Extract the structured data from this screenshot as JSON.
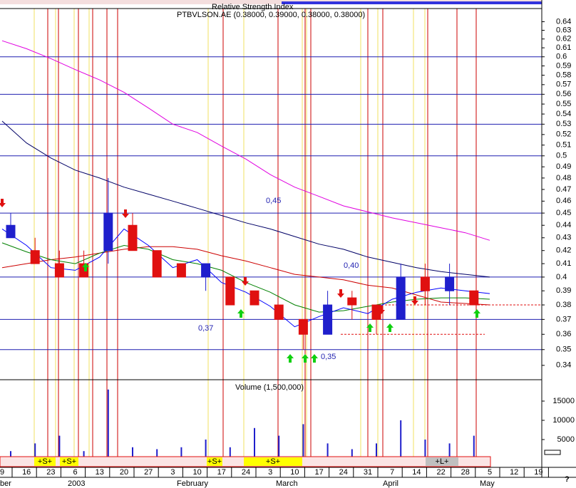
{
  "chart_data": {
    "type": "candlestick",
    "title": "PTBVLSON.AE (0.38000, 0.39000, 0.38000, 0.38000)",
    "indicator_title": "Relative Strength Index",
    "categories": [
      "9",
      "16",
      "23",
      "6",
      "13",
      "20",
      "27",
      "3",
      "10",
      "17",
      "24",
      "3",
      "10",
      "17",
      "24",
      "31",
      "7",
      "14",
      "22",
      "28",
      "5",
      "12",
      "19"
    ],
    "month_labels": [
      "ber",
      "2003",
      "February",
      "March",
      "April",
      "May"
    ],
    "log_y": true,
    "ylim": [
      0.332,
      0.654
    ],
    "yticks": [
      0.34,
      0.35,
      0.36,
      0.37,
      0.38,
      0.39,
      0.4,
      0.41,
      0.42,
      0.43,
      0.44,
      0.45,
      0.46,
      0.47,
      0.48,
      0.49,
      0.5,
      0.51,
      0.52,
      0.53,
      0.54,
      0.55,
      0.56,
      0.57,
      0.58,
      0.59,
      0.6,
      0.61,
      0.62,
      0.63,
      0.64
    ],
    "grid": false,
    "up_color": "#1f1fcc",
    "down_color": "#e01010",
    "open": [
      0.43,
      0.42,
      0.41,
      0.41,
      0.42,
      0.44,
      0.42,
      0.41,
      0.4,
      0.4,
      0.39,
      0.38,
      0.37,
      0.36,
      0.385,
      0.38,
      0.37,
      0.4,
      0.39,
      0.39,
      null,
      null,
      null
    ],
    "high": [
      0.45,
      0.43,
      0.42,
      0.42,
      0.48,
      0.45,
      0.42,
      0.41,
      0.41,
      0.4,
      0.39,
      0.38,
      0.37,
      0.39,
      0.39,
      0.38,
      0.41,
      0.41,
      0.41,
      0.39,
      null,
      null,
      null
    ],
    "low": [
      0.43,
      0.41,
      0.4,
      0.4,
      0.41,
      0.42,
      0.4,
      0.4,
      0.39,
      0.38,
      0.38,
      0.37,
      0.35,
      0.36,
      0.37,
      0.36,
      0.37,
      0.38,
      0.38,
      0.38,
      null,
      null,
      null
    ],
    "close": [
      0.44,
      0.41,
      0.4,
      0.4,
      0.45,
      0.42,
      0.4,
      0.4,
      0.41,
      0.38,
      0.38,
      0.37,
      0.36,
      0.38,
      0.38,
      0.37,
      0.4,
      0.39,
      0.4,
      0.38,
      null,
      null,
      null
    ],
    "series": [
      {
        "color": "#e000e0",
        "values": [
          0.618,
          0.609,
          0.598,
          0.586,
          0.575,
          0.562,
          0.546,
          0.53,
          0.522,
          0.509,
          0.497,
          0.483,
          0.472,
          0.464,
          0.456,
          0.451,
          0.446,
          0.442,
          0.438,
          0.434,
          0.428,
          null,
          null
        ]
      },
      {
        "color": "#000066",
        "values": [
          0.533,
          0.512,
          0.498,
          0.487,
          0.48,
          0.472,
          0.466,
          0.46,
          0.454,
          0.448,
          0.442,
          0.437,
          0.431,
          0.425,
          0.421,
          0.415,
          0.411,
          0.407,
          0.404,
          0.402,
          0.4,
          null,
          null
        ]
      },
      {
        "color": "#cc0000",
        "values": [
          0.407,
          0.41,
          0.413,
          0.415,
          0.418,
          0.421,
          0.423,
          0.423,
          0.421,
          0.416,
          0.412,
          0.407,
          0.402,
          0.4,
          0.398,
          0.394,
          0.392,
          0.387,
          0.382,
          0.381,
          0.38,
          null,
          null
        ]
      },
      {
        "color": "#008000",
        "values": [
          0.426,
          0.419,
          0.413,
          0.41,
          0.418,
          0.424,
          0.421,
          0.413,
          0.41,
          0.405,
          0.396,
          0.389,
          0.38,
          0.375,
          0.376,
          0.379,
          0.382,
          0.384,
          0.385,
          0.385,
          0.384,
          null,
          null
        ]
      },
      {
        "color": "#0000ff",
        "values": [
          0.437,
          0.424,
          0.407,
          0.405,
          0.415,
          0.437,
          0.424,
          0.407,
          0.413,
          0.396,
          0.389,
          0.379,
          0.365,
          0.372,
          0.378,
          0.374,
          0.384,
          0.389,
          0.392,
          0.39,
          0.388,
          null,
          null
        ]
      }
    ],
    "levels": [
      0.6,
      0.56,
      0.53,
      0.5,
      0.45,
      0.4,
      0.37,
      0.35
    ],
    "dashed_levels": [
      0.38,
      0.36
    ],
    "annotations": [
      "0,45",
      "0,40",
      "0,37",
      "0,35"
    ],
    "volume": {
      "title": "Volume (1,500,000)",
      "color": "#1f1fcc",
      "ylim": [
        0,
        20000
      ],
      "yticks": [
        5000,
        10000,
        15000
      ],
      "values": [
        2000,
        4000,
        6000,
        2000,
        18000,
        3000,
        2500,
        3000,
        5000,
        3000,
        8000,
        6000,
        9000,
        4000,
        2500,
        4000,
        10000,
        5000,
        4000,
        6000,
        null,
        null,
        null
      ]
    },
    "events": [
      "+S+",
      "+S+",
      "+S+",
      "+S+",
      "+L+"
    ],
    "help": "?"
  }
}
